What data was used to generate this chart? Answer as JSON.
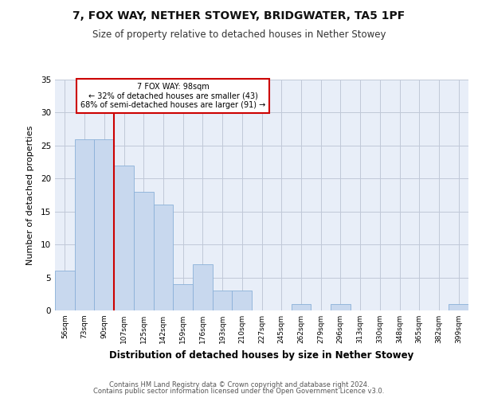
{
  "title1": "7, FOX WAY, NETHER STOWEY, BRIDGWATER, TA5 1PF",
  "title2": "Size of property relative to detached houses in Nether Stowey",
  "xlabel": "Distribution of detached houses by size in Nether Stowey",
  "ylabel": "Number of detached properties",
  "categories": [
    "56sqm",
    "73sqm",
    "90sqm",
    "107sqm",
    "125sqm",
    "142sqm",
    "159sqm",
    "176sqm",
    "193sqm",
    "210sqm",
    "227sqm",
    "245sqm",
    "262sqm",
    "279sqm",
    "296sqm",
    "313sqm",
    "330sqm",
    "348sqm",
    "365sqm",
    "382sqm",
    "399sqm"
  ],
  "values": [
    6,
    26,
    26,
    22,
    18,
    16,
    4,
    7,
    3,
    3,
    0,
    0,
    1,
    0,
    1,
    0,
    0,
    0,
    0,
    0,
    1
  ],
  "bar_color": "#c8d8ee",
  "bar_edge_color": "#8ab0d8",
  "vline_x": 2.5,
  "vline_color": "#cc0000",
  "annotation_text": "7 FOX WAY: 98sqm\n← 32% of detached houses are smaller (43)\n68% of semi-detached houses are larger (91) →",
  "annotation_box_color": "#ffffff",
  "annotation_box_edge": "#cc0000",
  "ylim": [
    0,
    35
  ],
  "yticks": [
    0,
    5,
    10,
    15,
    20,
    25,
    30,
    35
  ],
  "bg_color": "#e8eef8",
  "footer1": "Contains HM Land Registry data © Crown copyright and database right 2024.",
  "footer2": "Contains public sector information licensed under the Open Government Licence v3.0."
}
